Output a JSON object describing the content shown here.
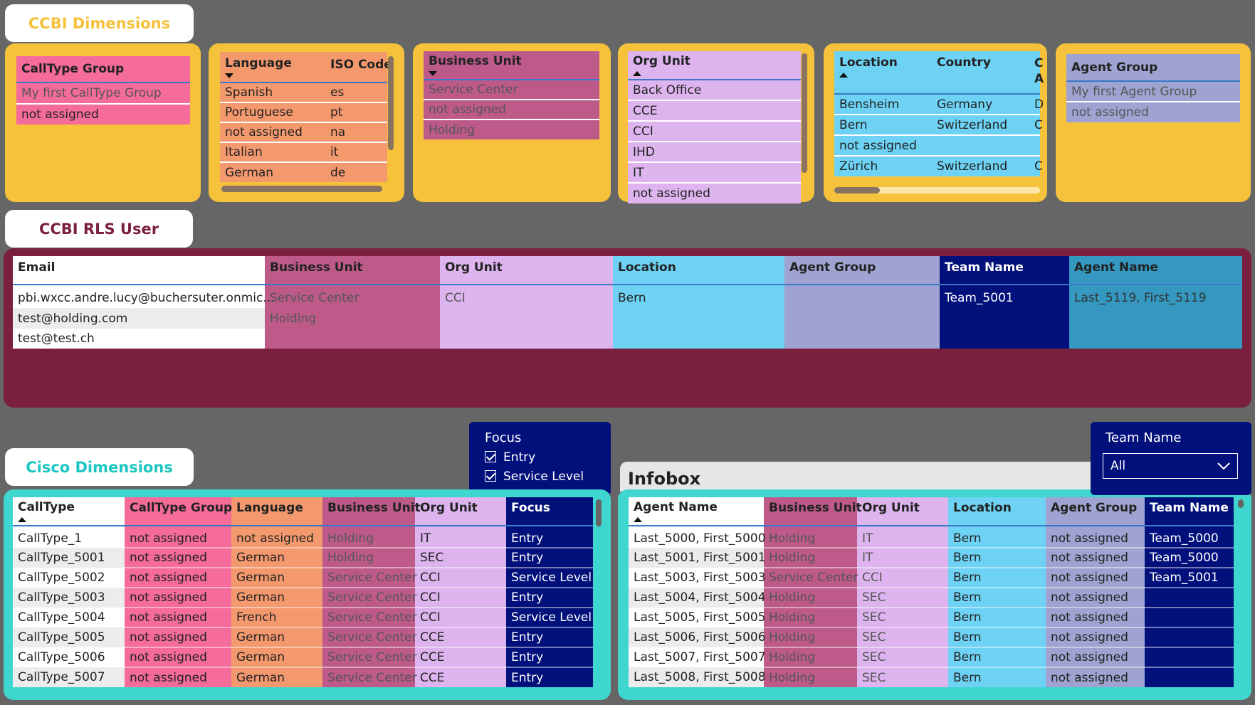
{
  "ccbi_dimensions": {
    "title": "CCBI Dimensions",
    "calltype_group": {
      "header": "CallType Group",
      "rows": [
        "My first CallType Group",
        "not assigned"
      ]
    },
    "language": {
      "headers": [
        "Language",
        "ISO Code"
      ],
      "rows": [
        [
          "Spanish",
          "es"
        ],
        [
          "Portuguese",
          "pt"
        ],
        [
          "not assigned",
          "na"
        ],
        [
          "Italian",
          "it"
        ],
        [
          "German",
          "de"
        ]
      ]
    },
    "business_unit": {
      "header": "Business Unit",
      "rows": [
        "Service Center",
        "not assigned",
        "Holding"
      ]
    },
    "org_unit": {
      "header": "Org Unit",
      "rows": [
        "Back Office",
        "CCE",
        "CCI",
        "IHD",
        "IT",
        "not assigned"
      ]
    },
    "location": {
      "headers": [
        "Location",
        "Country",
        "C"
      ],
      "header_extra": "A",
      "rows": [
        [
          "Bensheim",
          "Germany",
          "D"
        ],
        [
          "Bern",
          "Switzerland",
          "C"
        ],
        [
          "not assigned",
          "",
          ""
        ],
        [
          "Zürich",
          "Switzerland",
          "C"
        ]
      ]
    },
    "agent_group": {
      "header": "Agent Group",
      "rows": [
        "My first Agent Group",
        "not assigned"
      ]
    }
  },
  "rls_user": {
    "title": "CCBI RLS User",
    "headers": [
      "Email",
      "Business Unit",
      "Org Unit",
      "Location",
      "Agent Group",
      "Team Name",
      "Agent Name"
    ],
    "rows": [
      [
        "pbi.wxcc.andre.lucy@buchersuter.onmic...",
        "Service Center",
        "CCI",
        "Bern",
        "",
        "Team_5001",
        "Last_5119, First_5119"
      ],
      [
        "test@holding.com",
        "Holding",
        "",
        "",
        "",
        "",
        ""
      ],
      [
        "test@test.ch",
        "",
        "",
        "",
        "",
        "",
        ""
      ]
    ]
  },
  "focus_slicer": {
    "title": "Focus",
    "options": [
      {
        "label": "Entry",
        "checked": true
      },
      {
        "label": "Service Level",
        "checked": true
      }
    ]
  },
  "team_slicer": {
    "title": "Team Name",
    "value": "All"
  },
  "cisco_dimensions": {
    "title": "Cisco Dimensions",
    "headers": [
      "CallType",
      "CallType Group",
      "Language",
      "Business Unit",
      "Org Unit",
      "Focus"
    ],
    "rows": [
      [
        "CallType_1",
        "not assigned",
        "not assigned",
        "Holding",
        "IT",
        "Entry"
      ],
      [
        "CallType_5001",
        "not assigned",
        "German",
        "Holding",
        "SEC",
        "Entry"
      ],
      [
        "CallType_5002",
        "not assigned",
        "German",
        "Service Center",
        "CCI",
        "Service Level"
      ],
      [
        "CallType_5003",
        "not assigned",
        "German",
        "Service Center",
        "CCI",
        "Entry"
      ],
      [
        "CallType_5004",
        "not assigned",
        "French",
        "Service Center",
        "CCI",
        "Service Level"
      ],
      [
        "CallType_5005",
        "not assigned",
        "German",
        "Service Center",
        "CCE",
        "Entry"
      ],
      [
        "CallType_5006",
        "not assigned",
        "German",
        "Service Center",
        "CCE",
        "Entry"
      ],
      [
        "CallType_5007",
        "not assigned",
        "German",
        "Service Center",
        "CCE",
        "Entry"
      ]
    ]
  },
  "infobox": {
    "title": "Infobox",
    "headers": [
      "Agent Name",
      "Business Unit",
      "Org Unit",
      "Location",
      "Agent Group",
      "Team Name"
    ],
    "rows": [
      [
        "Last_5000, First_5000",
        "Holding",
        "IT",
        "Bern",
        "not assigned",
        "Team_5000"
      ],
      [
        "Last_5001, First_5001",
        "Holding",
        "IT",
        "Bern",
        "not assigned",
        "Team_5000"
      ],
      [
        "Last_5003, First_5003",
        "Service Center",
        "CCI",
        "Bern",
        "not assigned",
        "Team_5001"
      ],
      [
        "Last_5004, First_5004",
        "Holding",
        "SEC",
        "Bern",
        "not assigned",
        ""
      ],
      [
        "Last_5005, First_5005",
        "Holding",
        "SEC",
        "Bern",
        "not assigned",
        ""
      ],
      [
        "Last_5006, First_5006",
        "Holding",
        "SEC",
        "Bern",
        "not assigned",
        ""
      ],
      [
        "Last_5007, First_5007",
        "Holding",
        "SEC",
        "Bern",
        "not assigned",
        ""
      ],
      [
        "Last_5008, First_5008",
        "Holding",
        "SEC",
        "Bern",
        "not assigned",
        ""
      ]
    ]
  },
  "colors": {
    "background": "#666666",
    "yellow": "#F6C13B",
    "maroon": "#7A1F3D",
    "teal": "#3FD6D0",
    "pink": "#F56B99",
    "orange": "#F4996E",
    "plum": "#BD5A8A",
    "lavender": "#DDB4EE",
    "sky": "#6DD2F4",
    "periwinkle": "#9EA3D1",
    "navy": "#02107B",
    "steel_teal": "#3498C1"
  }
}
